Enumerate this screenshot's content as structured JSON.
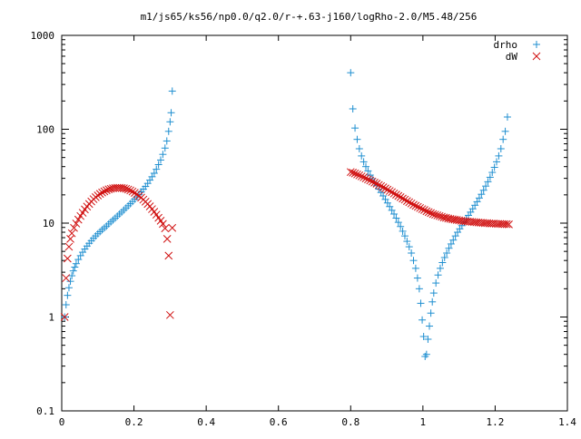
{
  "chart_data": {
    "type": "scatter",
    "title": "m1/js65/ks56/np0.0/q2.0/r-+.63-j160/logRho-2.0/M5.48/256",
    "xlabel": "",
    "ylabel": "",
    "xlim": [
      0,
      1.4
    ],
    "ylim": [
      0.1,
      1000
    ],
    "yscale": "log",
    "grid": false,
    "legend_position": "top-right",
    "x_ticks": [
      {
        "value": 0,
        "label": "0"
      },
      {
        "value": 0.2,
        "label": "0.2"
      },
      {
        "value": 0.4,
        "label": "0.4"
      },
      {
        "value": 0.6,
        "label": "0.6"
      },
      {
        "value": 0.8,
        "label": "0.8"
      },
      {
        "value": 1,
        "label": "1"
      },
      {
        "value": 1.2,
        "label": "1.2"
      },
      {
        "value": 1.4,
        "label": "1.4"
      }
    ],
    "y_ticks": [
      {
        "value": 0.1,
        "label": "0.1"
      },
      {
        "value": 1,
        "label": "1"
      },
      {
        "value": 10,
        "label": "10"
      },
      {
        "value": 100,
        "label": "100"
      },
      {
        "value": 1000,
        "label": "1000"
      }
    ],
    "series": [
      {
        "name": "drho",
        "marker": "plus",
        "color": "#1f8fd0",
        "points": [
          [
            0.008,
            1.0
          ],
          [
            0.012,
            1.35
          ],
          [
            0.016,
            1.7
          ],
          [
            0.02,
            2.05
          ],
          [
            0.024,
            2.4
          ],
          [
            0.028,
            2.75
          ],
          [
            0.032,
            3.1
          ],
          [
            0.036,
            3.4
          ],
          [
            0.04,
            3.7
          ],
          [
            0.046,
            4.1
          ],
          [
            0.052,
            4.5
          ],
          [
            0.058,
            4.9
          ],
          [
            0.064,
            5.3
          ],
          [
            0.07,
            5.7
          ],
          [
            0.076,
            6.1
          ],
          [
            0.082,
            6.5
          ],
          [
            0.088,
            6.9
          ],
          [
            0.094,
            7.3
          ],
          [
            0.1,
            7.7
          ],
          [
            0.106,
            8.1
          ],
          [
            0.112,
            8.5
          ],
          [
            0.118,
            8.9
          ],
          [
            0.124,
            9.3
          ],
          [
            0.13,
            9.8
          ],
          [
            0.136,
            10.3
          ],
          [
            0.142,
            10.8
          ],
          [
            0.148,
            11.3
          ],
          [
            0.154,
            11.9
          ],
          [
            0.16,
            12.5
          ],
          [
            0.166,
            13.1
          ],
          [
            0.172,
            13.8
          ],
          [
            0.178,
            14.5
          ],
          [
            0.184,
            15.3
          ],
          [
            0.19,
            16.1
          ],
          [
            0.196,
            17.0
          ],
          [
            0.202,
            18.0
          ],
          [
            0.208,
            19.0
          ],
          [
            0.214,
            20.2
          ],
          [
            0.22,
            21.5
          ],
          [
            0.226,
            23.0
          ],
          [
            0.232,
            24.6
          ],
          [
            0.238,
            26.5
          ],
          [
            0.244,
            28.7
          ],
          [
            0.25,
            31.2
          ],
          [
            0.256,
            34.0
          ],
          [
            0.262,
            37.5
          ],
          [
            0.268,
            42.0
          ],
          [
            0.274,
            47.0
          ],
          [
            0.28,
            54.0
          ],
          [
            0.286,
            63.0
          ],
          [
            0.291,
            75.0
          ],
          [
            0.296,
            95.0
          ],
          [
            0.3,
            120.0
          ],
          [
            0.303,
            150.0
          ],
          [
            0.306,
            255.0
          ],
          [
            0.8,
            400.0
          ],
          [
            0.806,
            165.0
          ],
          [
            0.812,
            103.0
          ],
          [
            0.818,
            78.0
          ],
          [
            0.824,
            62.0
          ],
          [
            0.83,
            52.0
          ],
          [
            0.836,
            45.0
          ],
          [
            0.842,
            40.0
          ],
          [
            0.848,
            36.0
          ],
          [
            0.854,
            32.5
          ],
          [
            0.86,
            29.8
          ],
          [
            0.866,
            27.2
          ],
          [
            0.872,
            25.0
          ],
          [
            0.878,
            23.0
          ],
          [
            0.884,
            21.2
          ],
          [
            0.89,
            19.5
          ],
          [
            0.896,
            17.9
          ],
          [
            0.902,
            16.4
          ],
          [
            0.908,
            15.0
          ],
          [
            0.914,
            13.7
          ],
          [
            0.92,
            12.5
          ],
          [
            0.926,
            11.3
          ],
          [
            0.932,
            10.2
          ],
          [
            0.938,
            9.2
          ],
          [
            0.944,
            8.2
          ],
          [
            0.95,
            7.3
          ],
          [
            0.956,
            6.4
          ],
          [
            0.962,
            5.6
          ],
          [
            0.968,
            4.8
          ],
          [
            0.974,
            4.0
          ],
          [
            0.98,
            3.3
          ],
          [
            0.985,
            2.6
          ],
          [
            0.99,
            2.0
          ],
          [
            0.994,
            1.4
          ],
          [
            0.998,
            0.93
          ],
          [
            1.002,
            0.62
          ],
          [
            1.006,
            0.38
          ],
          [
            1.01,
            0.4
          ],
          [
            1.014,
            0.58
          ],
          [
            1.018,
            0.8
          ],
          [
            1.022,
            1.1
          ],
          [
            1.026,
            1.45
          ],
          [
            1.03,
            1.8
          ],
          [
            1.036,
            2.3
          ],
          [
            1.042,
            2.8
          ],
          [
            1.048,
            3.3
          ],
          [
            1.054,
            3.8
          ],
          [
            1.06,
            4.3
          ],
          [
            1.066,
            4.8
          ],
          [
            1.072,
            5.4
          ],
          [
            1.078,
            6.0
          ],
          [
            1.084,
            6.6
          ],
          [
            1.09,
            7.3
          ],
          [
            1.096,
            8.0
          ],
          [
            1.102,
            8.7
          ],
          [
            1.108,
            9.4
          ],
          [
            1.114,
            10.2
          ],
          [
            1.12,
            11.1
          ],
          [
            1.126,
            12.1
          ],
          [
            1.132,
            13.1
          ],
          [
            1.138,
            14.2
          ],
          [
            1.144,
            15.5
          ],
          [
            1.15,
            16.9
          ],
          [
            1.156,
            18.5
          ],
          [
            1.162,
            20.3
          ],
          [
            1.168,
            22.4
          ],
          [
            1.174,
            24.8
          ],
          [
            1.18,
            27.6
          ],
          [
            1.186,
            30.8
          ],
          [
            1.192,
            34.7
          ],
          [
            1.198,
            39.3
          ],
          [
            1.204,
            45.0
          ],
          [
            1.21,
            52.0
          ],
          [
            1.216,
            62.0
          ],
          [
            1.222,
            78.0
          ],
          [
            1.228,
            95.0
          ],
          [
            1.234,
            135.0
          ]
        ]
      },
      {
        "name": "dW",
        "marker": "cross",
        "color": "#d01010",
        "points": [
          [
            0.008,
            1.0
          ],
          [
            0.012,
            2.6
          ],
          [
            0.016,
            4.2
          ],
          [
            0.02,
            5.6
          ],
          [
            0.024,
            6.8
          ],
          [
            0.028,
            7.8
          ],
          [
            0.034,
            8.9
          ],
          [
            0.04,
            9.9
          ],
          [
            0.046,
            10.9
          ],
          [
            0.052,
            11.9
          ],
          [
            0.058,
            12.9
          ],
          [
            0.064,
            14.0
          ],
          [
            0.07,
            15.0
          ],
          [
            0.076,
            16.0
          ],
          [
            0.082,
            17.0
          ],
          [
            0.088,
            18.0
          ],
          [
            0.094,
            18.9
          ],
          [
            0.1,
            19.7
          ],
          [
            0.106,
            20.5
          ],
          [
            0.112,
            21.2
          ],
          [
            0.118,
            21.8
          ],
          [
            0.124,
            22.4
          ],
          [
            0.13,
            22.9
          ],
          [
            0.136,
            23.2
          ],
          [
            0.142,
            23.5
          ],
          [
            0.148,
            23.7
          ],
          [
            0.154,
            23.8
          ],
          [
            0.16,
            23.8
          ],
          [
            0.166,
            23.7
          ],
          [
            0.172,
            23.5
          ],
          [
            0.178,
            23.2
          ],
          [
            0.184,
            22.8
          ],
          [
            0.19,
            22.3
          ],
          [
            0.196,
            21.7
          ],
          [
            0.202,
            21.0
          ],
          [
            0.208,
            20.3
          ],
          [
            0.214,
            19.5
          ],
          [
            0.22,
            18.7
          ],
          [
            0.226,
            17.8
          ],
          [
            0.232,
            16.9
          ],
          [
            0.238,
            16.0
          ],
          [
            0.244,
            15.1
          ],
          [
            0.25,
            14.1
          ],
          [
            0.256,
            13.2
          ],
          [
            0.262,
            12.3
          ],
          [
            0.268,
            11.4
          ],
          [
            0.274,
            10.6
          ],
          [
            0.28,
            9.8
          ],
          [
            0.286,
            8.8
          ],
          [
            0.292,
            6.8
          ],
          [
            0.296,
            4.5
          ],
          [
            0.3,
            1.05
          ],
          [
            0.306,
            8.9
          ],
          [
            0.8,
            35.0
          ],
          [
            0.806,
            34.5
          ],
          [
            0.812,
            33.8
          ],
          [
            0.818,
            33.0
          ],
          [
            0.824,
            32.3
          ],
          [
            0.83,
            31.5
          ],
          [
            0.836,
            30.8
          ],
          [
            0.842,
            30.0
          ],
          [
            0.848,
            29.2
          ],
          [
            0.854,
            28.5
          ],
          [
            0.86,
            27.7
          ],
          [
            0.866,
            27.0
          ],
          [
            0.872,
            26.3
          ],
          [
            0.878,
            25.5
          ],
          [
            0.884,
            24.8
          ],
          [
            0.89,
            24.1
          ],
          [
            0.896,
            23.4
          ],
          [
            0.902,
            22.7
          ],
          [
            0.908,
            22.0
          ],
          [
            0.914,
            21.4
          ],
          [
            0.92,
            20.7
          ],
          [
            0.926,
            20.1
          ],
          [
            0.932,
            19.5
          ],
          [
            0.938,
            18.9
          ],
          [
            0.944,
            18.3
          ],
          [
            0.95,
            17.8
          ],
          [
            0.956,
            17.2
          ],
          [
            0.962,
            16.7
          ],
          [
            0.968,
            16.2
          ],
          [
            0.974,
            15.7
          ],
          [
            0.98,
            15.3
          ],
          [
            0.986,
            14.9
          ],
          [
            0.992,
            14.5
          ],
          [
            0.998,
            14.1
          ],
          [
            1.004,
            13.8
          ],
          [
            1.01,
            13.4
          ],
          [
            1.016,
            13.1
          ],
          [
            1.022,
            12.8
          ],
          [
            1.028,
            12.5
          ],
          [
            1.034,
            12.3
          ],
          [
            1.04,
            12.1
          ],
          [
            1.046,
            11.9
          ],
          [
            1.052,
            11.7
          ],
          [
            1.058,
            11.5
          ],
          [
            1.064,
            11.4
          ],
          [
            1.07,
            11.2
          ],
          [
            1.076,
            11.1
          ],
          [
            1.082,
            11.0
          ],
          [
            1.088,
            10.9
          ],
          [
            1.094,
            10.8
          ],
          [
            1.1,
            10.7
          ],
          [
            1.106,
            10.6
          ],
          [
            1.112,
            10.5
          ],
          [
            1.118,
            10.45
          ],
          [
            1.124,
            10.4
          ],
          [
            1.13,
            10.35
          ],
          [
            1.136,
            10.3
          ],
          [
            1.142,
            10.25
          ],
          [
            1.148,
            10.2
          ],
          [
            1.154,
            10.15
          ],
          [
            1.16,
            10.1
          ],
          [
            1.166,
            10.05
          ],
          [
            1.172,
            10.0
          ],
          [
            1.178,
            10.0
          ],
          [
            1.184,
            9.95
          ],
          [
            1.19,
            9.9
          ],
          [
            1.196,
            9.9
          ],
          [
            1.202,
            9.85
          ],
          [
            1.208,
            9.8
          ],
          [
            1.214,
            9.8
          ],
          [
            1.22,
            9.78
          ],
          [
            1.226,
            9.75
          ],
          [
            1.232,
            9.75
          ],
          [
            1.238,
            9.7
          ]
        ]
      }
    ]
  }
}
